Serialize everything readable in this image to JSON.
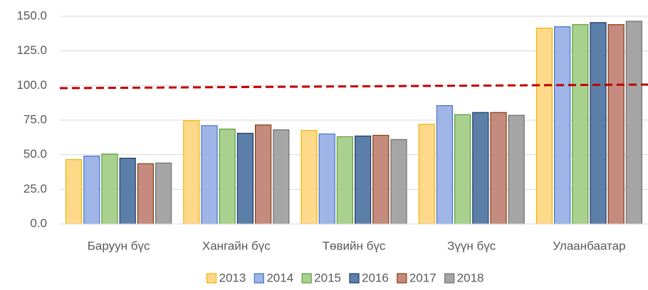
{
  "chart_data": {
    "type": "bar",
    "categories": [
      "Баруун бүс",
      "Хангайн бүс",
      "Төвийн бүс",
      "Зүүн бүс",
      "Улаанбаатар"
    ],
    "series": [
      {
        "name": "2013",
        "color": "#ffd98a",
        "edge_color": "#f0b400",
        "values": [
          46.5,
          74.5,
          67.5,
          72,
          141.5
        ]
      },
      {
        "name": "2014",
        "color": "#9fb5e8",
        "edge_color": "#4472c4",
        "values": [
          49,
          71,
          65,
          85.5,
          142.5
        ]
      },
      {
        "name": "2015",
        "color": "#a9d18e",
        "edge_color": "#5e9a3a",
        "values": [
          50.5,
          68.5,
          63,
          79,
          144
        ]
      },
      {
        "name": "2016",
        "color": "#5b7fa8",
        "edge_color": "#203864",
        "values": [
          47.5,
          65.5,
          63.5,
          80.5,
          145.5
        ]
      },
      {
        "name": "2017",
        "color": "#c48b7e",
        "edge_color": "#843c0c",
        "values": [
          43.5,
          71.5,
          64,
          80.5,
          144
        ]
      },
      {
        "name": "2018",
        "color": "#a5a5a5",
        "edge_color": "#6f6f6f",
        "values": [
          44,
          68,
          61,
          78.5,
          146.5
        ]
      }
    ],
    "reference_line": {
      "values": [
        98.1,
        100.7
      ],
      "color": "#c00000"
    },
    "ylim": [
      0,
      150
    ],
    "yticks": [
      {
        "value": 0,
        "label": "0.0"
      },
      {
        "value": 25,
        "label": "25.0"
      },
      {
        "value": 50,
        "label": "50.0"
      },
      {
        "value": 75,
        "label": "75.0"
      },
      {
        "value": 100,
        "label": "100.0"
      },
      {
        "value": 125,
        "label": "125.0"
      },
      {
        "value": 150,
        "label": "150.0"
      }
    ],
    "grid": true,
    "legend": "bottom"
  }
}
